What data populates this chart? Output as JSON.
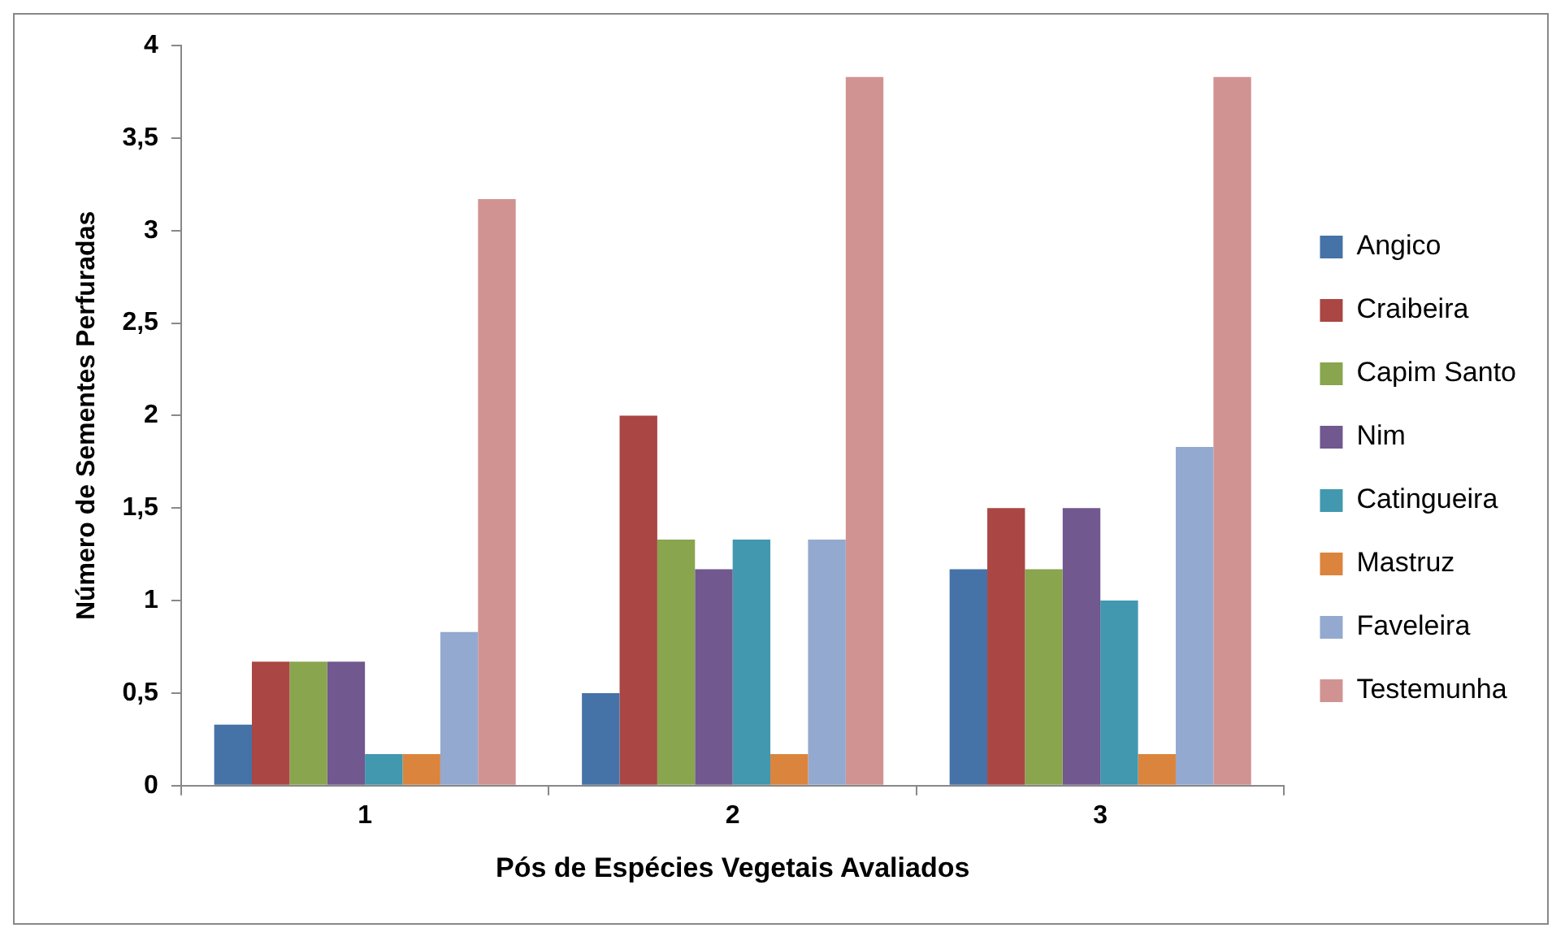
{
  "chart_data": {
    "type": "bar",
    "xlabel": "Pós de Espécies Vegetais Avaliados",
    "ylabel": "Número de Sementes Perfuradas",
    "categories": [
      "1",
      "2",
      "3"
    ],
    "series": [
      {
        "name": "Angico",
        "color": "#4572a7",
        "values": [
          0.33,
          0.5,
          1.17
        ]
      },
      {
        "name": "Craibeira",
        "color": "#aa4643",
        "values": [
          0.67,
          2,
          1.5
        ]
      },
      {
        "name": "Capim Santo",
        "color": "#89a54e",
        "values": [
          0.67,
          1.33,
          1.17
        ]
      },
      {
        "name": "Nim",
        "color": "#71588f",
        "values": [
          0.67,
          1.17,
          1.5
        ]
      },
      {
        "name": "Catingueira",
        "color": "#4198af",
        "values": [
          0.17,
          1.33,
          1
        ]
      },
      {
        "name": "Mastruz",
        "color": "#db843d",
        "values": [
          0.17,
          0.17,
          0.17
        ]
      },
      {
        "name": "Faveleira",
        "color": "#93a9cf",
        "values": [
          0.83,
          1.33,
          1.83
        ]
      },
      {
        "name": "Testemunha",
        "color": "#d19392",
        "values": [
          3.17,
          3.83,
          3.83
        ]
      }
    ],
    "ylim": [
      0,
      4
    ],
    "yticks": [
      0,
      {
        "value": 0.5,
        "label": "0,5"
      },
      1,
      {
        "value": 1.5,
        "label": "1,5"
      },
      2,
      {
        "value": 2.5,
        "label": "2,5"
      },
      3,
      {
        "value": 3.5,
        "label": "3,5"
      },
      4
    ],
    "grid": false,
    "legend": "right"
  }
}
